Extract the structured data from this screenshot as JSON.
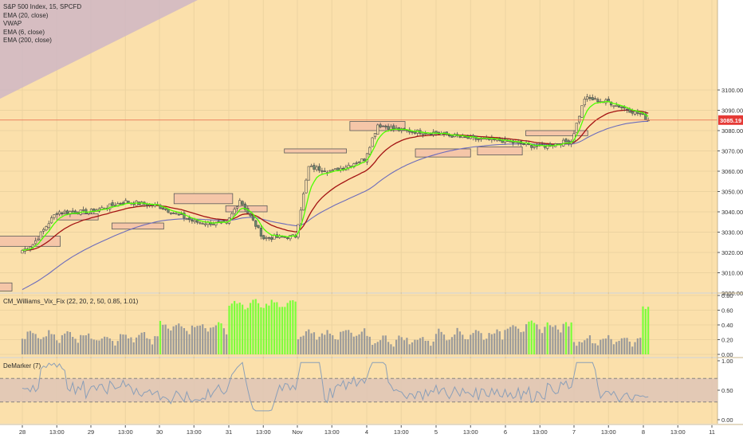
{
  "colors": {
    "background": "#fbe0ab",
    "axis_bg": "#ffffff",
    "grid": "#ecd3a0",
    "pane_border": "#c8b48a",
    "candle_up": "#fbe0ab",
    "candle_down": "#6d8b6a",
    "candle_wick": "#4d4d4d",
    "ema20": "#a41313",
    "ema6": "#4dff00",
    "ema200": "#6c6cbc",
    "last_price_line": "#e8654a",
    "last_price_tag": "#e53935",
    "zone_fill": "#f5c6a8",
    "zone_stroke": "#5a5a5a",
    "triangle": "#cfb6c4",
    "vix_green": "#7cff3a",
    "vix_gray": "#9a9a9a",
    "demarker_line": "#8a9fb8",
    "demarker_band": "#e0c6b6"
  },
  "legend": {
    "symbol": "S&P 500 Index, 15, SPCFD",
    "studies": [
      "EMA (20, close)",
      "VWAP",
      "EMA (6, close)",
      "EMA (200, close)"
    ]
  },
  "indicators": {
    "vix_label": "CM_Williams_Vix_Fix (22, 20, 2, 50, 0.85, 1.01)",
    "demarker_label": "DeMarker (7)"
  },
  "price_scale": {
    "ticks": [
      "3100.00",
      "3090.00",
      "3080.00",
      "3070.00",
      "3060.00",
      "3050.00",
      "3040.00",
      "3030.00",
      "3020.00",
      "3010.00",
      "3000.00"
    ],
    "last_price": "3085.19"
  },
  "vix_scale": {
    "ticks": [
      "0.80",
      "0.60",
      "0.40",
      "0.20",
      "0.00"
    ]
  },
  "demarker_scale": {
    "ticks": [
      "1.00",
      "0.50",
      "0.00"
    ]
  },
  "time_axis": {
    "labels": [
      "28",
      "13:00",
      "29",
      "13:00",
      "30",
      "13:00",
      "31",
      "13:00",
      "Nov",
      "13:00",
      "4",
      "13:00",
      "5",
      "13:00",
      "6",
      "13:00",
      "7",
      "13:00",
      "8",
      "13:00",
      "11"
    ]
  },
  "chart_data": [
    {
      "type": "candlestick",
      "title": "S&P 500 Index, 15, SPCFD",
      "ylim": [
        2996,
        3103
      ],
      "x_sessions": [
        "28",
        "29",
        "30",
        "31",
        "Nov",
        "4",
        "5",
        "6",
        "7",
        "8",
        "11"
      ],
      "close_path_keypoints": [
        {
          "session": "28",
          "open": 3021,
          "early": 3024,
          "mid": 3040,
          "close": 3040
        },
        {
          "session": "29",
          "mid": 3045,
          "close": 3043
        },
        {
          "session": "30",
          "mid": 3035,
          "close": 3034
        },
        {
          "session": "31",
          "early": 3046,
          "mid": 3027,
          "close": 3028
        },
        {
          "session": "Nov",
          "early": 3062,
          "mid": 3060,
          "close": 3066
        },
        {
          "session": "4",
          "early": 3083,
          "mid": 3080,
          "close": 3079
        },
        {
          "session": "5",
          "mid": 3076,
          "close": 3075
        },
        {
          "session": "6",
          "mid": 3072,
          "close": 3075
        },
        {
          "session": "7",
          "early": 3096,
          "mid": 3094,
          "close": 3088
        },
        {
          "session": "8",
          "close": 3085.19
        }
      ],
      "last_price": 3085.19,
      "series": [
        {
          "name": "EMA (20, close)",
          "color": "#a41313"
        },
        {
          "name": "EMA (6, close)",
          "color": "#4dff00"
        },
        {
          "name": "EMA (200, close)",
          "color": "#6c6cbc"
        }
      ],
      "zones": [
        {
          "x0": -0.45,
          "x1": -0.15,
          "y0": 3001,
          "y1": 3005
        },
        {
          "x0": -0.35,
          "x1": 0.55,
          "y0": 3023,
          "y1": 3028
        },
        {
          "x0": 0.5,
          "x1": 1.1,
          "y0": 3036,
          "y1": 3039
        },
        {
          "x0": 1.3,
          "x1": 2.05,
          "y0": 3031.5,
          "y1": 3034.5
        },
        {
          "x0": 2.2,
          "x1": 3.05,
          "y0": 3044,
          "y1": 3049
        },
        {
          "x0": 2.95,
          "x1": 3.55,
          "y0": 3040,
          "y1": 3043
        },
        {
          "x0": 3.8,
          "x1": 4.7,
          "y0": 3069,
          "y1": 3071
        },
        {
          "x0": 4.75,
          "x1": 5.55,
          "y0": 3080,
          "y1": 3084.5
        },
        {
          "x0": 5.7,
          "x1": 6.5,
          "y0": 3067,
          "y1": 3071
        },
        {
          "x0": 6.6,
          "x1": 7.25,
          "y0": 3068,
          "y1": 3072
        },
        {
          "x0": 7.3,
          "x1": 8.2,
          "y0": 3077.5,
          "y1": 3080
        }
      ]
    },
    {
      "type": "bar",
      "title": "CM_Williams_Vix_Fix (22, 20, 2, 50, 0.85, 1.01)",
      "ylim": [
        0,
        0.82
      ],
      "regimes": [
        {
          "session": "28",
          "level": 0.18
        },
        {
          "session": "29",
          "level": 0.15
        },
        {
          "session": "30",
          "level": 0.3
        },
        {
          "session": "31",
          "level": 0.6
        },
        {
          "session": "Nov",
          "level": 0.2
        },
        {
          "session": "4",
          "level": 0.12
        },
        {
          "session": "5",
          "level": 0.2
        },
        {
          "session": "6",
          "level": 0.3
        },
        {
          "session": "7",
          "level": 0.12
        },
        {
          "session": "8",
          "level": 0.55
        }
      ]
    },
    {
      "type": "line",
      "title": "DeMarker (7)",
      "ylim": [
        0,
        1
      ],
      "band": [
        0.3,
        0.7
      ],
      "range_observed": [
        0.15,
        0.97
      ]
    }
  ]
}
